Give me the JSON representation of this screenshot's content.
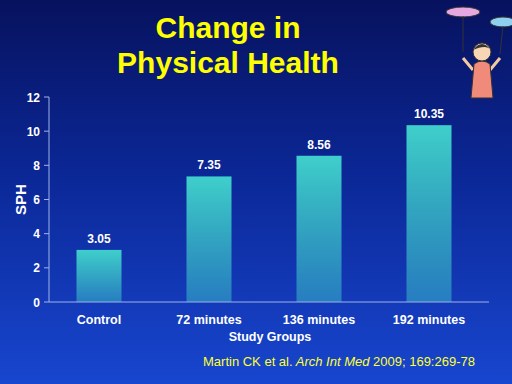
{
  "chart_data": {
    "type": "bar",
    "title": "Change in\nPhysical Health",
    "y_label": "SPH",
    "x_label": "Study Groups",
    "categories": [
      "Control",
      "72 minutes",
      "136 minutes",
      "192 minutes"
    ],
    "values": [
      3.05,
      7.35,
      8.56,
      10.35
    ],
    "color": "#3fcfcb",
    "ylim": [
      0,
      12
    ],
    "yticks": [
      0,
      2,
      4,
      6,
      8,
      10,
      12
    ],
    "grid": false,
    "data_labels": true,
    "annotations": [
      "Martin CK et al.",
      "Arch Int Med",
      "2009; 169:269-78"
    ]
  }
}
